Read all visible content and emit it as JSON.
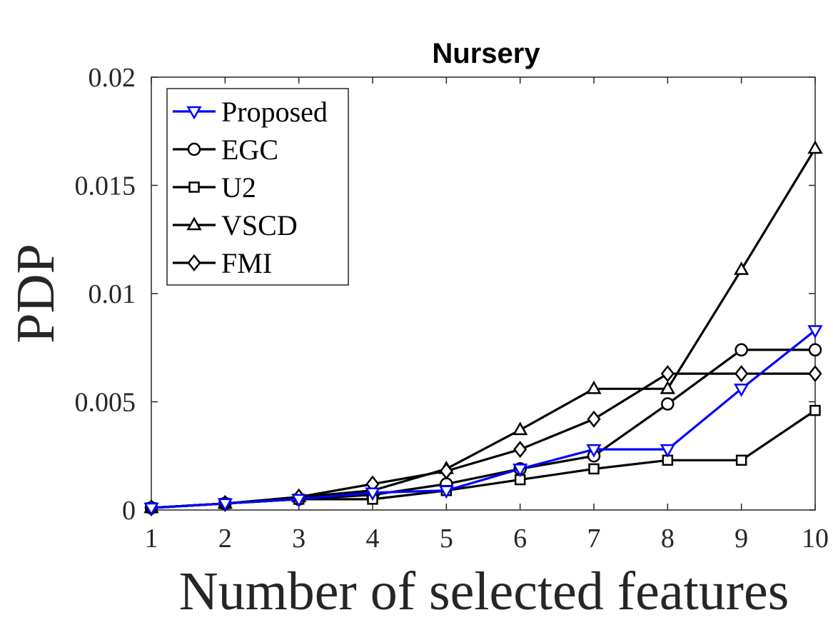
{
  "chart_data": {
    "type": "line",
    "title": "Nursery",
    "xlabel": "Number of selected features",
    "ylabel": "PDP",
    "x": [
      1,
      2,
      3,
      4,
      5,
      6,
      7,
      8,
      9,
      10
    ],
    "xlim": [
      1,
      10
    ],
    "ylim": [
      0,
      0.02
    ],
    "xticks": [
      1,
      2,
      3,
      4,
      5,
      6,
      7,
      8,
      9,
      10
    ],
    "yticks": [
      0,
      0.005,
      0.01,
      0.015,
      0.02
    ],
    "ytick_labels": [
      "0",
      "0.005",
      "0.01",
      "0.015",
      "0.02"
    ],
    "grid": false,
    "legend_position": "top-left",
    "series": [
      {
        "name": "Proposed",
        "marker": "triangle-down",
        "color": "#0000ff",
        "values": [
          0.0001,
          0.0003,
          0.0005,
          0.0008,
          0.0009,
          0.0019,
          0.0028,
          0.0028,
          0.0056,
          0.0083
        ]
      },
      {
        "name": "EGC",
        "marker": "circle",
        "color": "#000000",
        "values": [
          0.0001,
          0.0003,
          0.0005,
          0.0007,
          0.0012,
          0.0019,
          0.0025,
          0.0049,
          0.0074,
          0.0074
        ]
      },
      {
        "name": "U2",
        "marker": "square",
        "color": "#000000",
        "values": [
          0.0001,
          0.0003,
          0.0005,
          0.0005,
          0.0009,
          0.0014,
          0.0019,
          0.0023,
          0.0023,
          0.0046
        ]
      },
      {
        "name": "VSCD",
        "marker": "triangle-up",
        "color": "#000000",
        "values": [
          0.0001,
          0.0003,
          0.0006,
          0.0009,
          0.0019,
          0.0037,
          0.0056,
          0.0056,
          0.0111,
          0.0167
        ]
      },
      {
        "name": "FMI",
        "marker": "diamond",
        "color": "#000000",
        "values": [
          0.0001,
          0.0003,
          0.0006,
          0.0012,
          0.0018,
          0.0028,
          0.0042,
          0.0063,
          0.0063,
          0.0063
        ]
      }
    ]
  }
}
